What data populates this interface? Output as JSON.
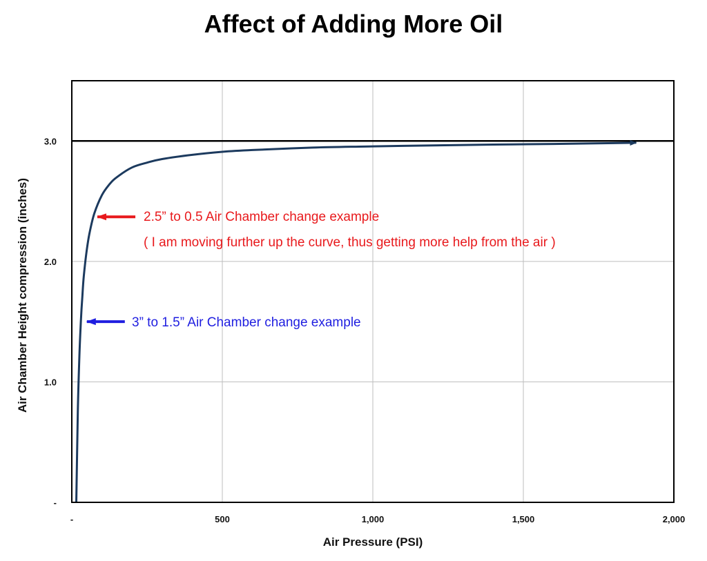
{
  "chart_data": {
    "type": "line",
    "title": "Affect of Adding More Oil",
    "xlabel": "Air Pressure (PSI)",
    "ylabel": "Air Chamber Height compression (inches)",
    "xlim": [
      0,
      2000
    ],
    "ylim": [
      0,
      3.5
    ],
    "x_ticks": [
      0,
      500,
      1000,
      1500,
      2000
    ],
    "x_tick_labels": [
      "-",
      "500",
      "1,000",
      "1,500",
      "2,000"
    ],
    "y_ticks": [
      0,
      1,
      2,
      3
    ],
    "y_tick_labels": [
      "-",
      "1.0",
      "2.0",
      "3.0"
    ],
    "grid": true,
    "reference_line": {
      "y": 3.0
    },
    "series": [
      {
        "color": "#1c3a5e",
        "x": [
          15,
          20,
          25,
          30,
          35,
          40,
          50,
          60,
          75,
          100,
          125,
          150,
          200,
          250,
          300,
          400,
          500,
          600,
          800,
          1000,
          1200,
          1400,
          1600,
          1875
        ],
        "y": [
          0,
          0.75,
          1.2,
          1.5,
          1.71,
          1.88,
          2.1,
          2.25,
          2.4,
          2.55,
          2.64,
          2.7,
          2.78,
          2.82,
          2.85,
          2.885,
          2.91,
          2.925,
          2.945,
          2.955,
          2.963,
          2.97,
          2.975,
          2.985
        ]
      }
    ],
    "annotations": [
      {
        "text": "2.5” to 0.5 Air Chamber change example",
        "color": "#e8191c",
        "arrow_to": {
          "x": 85,
          "y": 2.37
        }
      },
      {
        "text": "( I am moving further up the curve, thus getting more help from the air )",
        "color": "#e8191c"
      },
      {
        "text": "3” to 1.5” Air Chamber change example",
        "color": "#1f1ee0",
        "arrow_to": {
          "x": 50,
          "y": 1.5
        }
      }
    ]
  }
}
